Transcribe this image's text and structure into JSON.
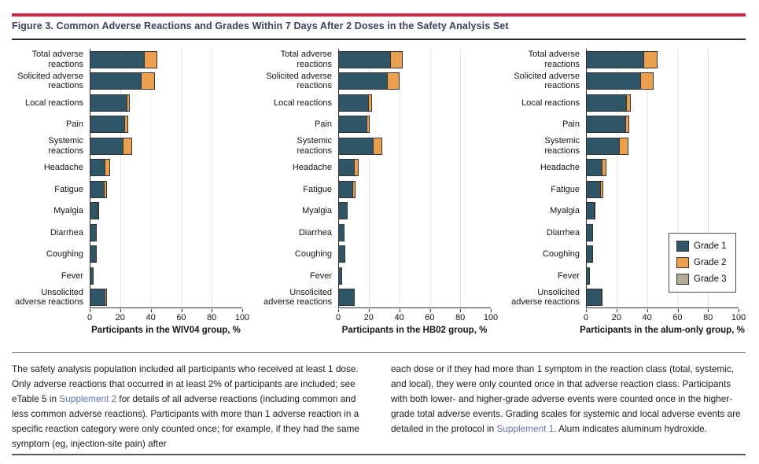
{
  "header": {
    "title": "Figure 3. Common Adverse Reactions and Grades Within 7 Days After 2 Doses in the Safety Analysis Set"
  },
  "colors": {
    "accent_red": "#d02440",
    "title_navy": "#3a4259",
    "grade1_teal": "#2f5666",
    "grade2_orange": "#eba04f",
    "grade3_gray": "#b5ab9b",
    "bar_border": "#333333",
    "gridline": "#e4e4e4",
    "link_blue": "#6373b5"
  },
  "legend": {
    "items": [
      {
        "label": "Grade 1",
        "color": "#2f5666"
      },
      {
        "label": "Grade 2",
        "color": "#eba04f"
      },
      {
        "label": "Grade 3",
        "color": "#b5ab9b"
      }
    ]
  },
  "chart_data": [
    {
      "type": "bar",
      "orientation": "horizontal",
      "stacked": true,
      "xlabel": "Participants in the WIV04 group, %",
      "xlim": [
        0,
        100
      ],
      "xticks": [
        0,
        20,
        40,
        60,
        80,
        100
      ],
      "grid": "vertical",
      "categories": [
        "Total adverse reactions",
        "Solicited adverse reactions",
        "Local reactions",
        "Pain",
        "Systemic reactions",
        "Headache",
        "Fatigue",
        "Myalgia",
        "Diarrhea",
        "Coughing",
        "Fever",
        "Unsolicited adverse reactions"
      ],
      "category_label_lines": [
        [
          "Total adverse",
          "reactions"
        ],
        [
          "Solicited adverse",
          "reactions"
        ],
        [
          "Local reactions"
        ],
        [
          "Pain"
        ],
        [
          "Systemic",
          "reactions"
        ],
        [
          "Headache"
        ],
        [
          "Fatigue"
        ],
        [
          "Myalgia"
        ],
        [
          "Diarrhea"
        ],
        [
          "Coughing"
        ],
        [
          "Fever"
        ],
        [
          "Unsolicited",
          "adverse reactions"
        ]
      ],
      "series": [
        {
          "name": "Grade 1",
          "color": "#2f5666",
          "values": [
            35,
            33,
            23.5,
            22,
            21,
            9.5,
            9,
            4.5,
            3.5,
            3.5,
            1.5,
            9.5
          ]
        },
        {
          "name": "Grade 2",
          "color": "#eba04f",
          "values": [
            8.5,
            8.5,
            2,
            2,
            6,
            3,
            1.5,
            0.5,
            0,
            0,
            0,
            1
          ]
        },
        {
          "name": "Grade 3",
          "color": "#b5ab9b",
          "values": [
            0,
            0,
            0,
            0,
            0,
            0,
            0,
            0,
            0,
            0,
            0,
            0
          ]
        }
      ]
    },
    {
      "type": "bar",
      "orientation": "horizontal",
      "stacked": true,
      "xlabel": "Participants in the HB02 group, %",
      "xlim": [
        0,
        100
      ],
      "xticks": [
        0,
        20,
        40,
        60,
        80,
        100
      ],
      "grid": "vertical",
      "categories": [
        "Total adverse reactions",
        "Solicited adverse reactions",
        "Local reactions",
        "Pain",
        "Systemic reactions",
        "Headache",
        "Fatigue",
        "Myalgia",
        "Diarrhea",
        "Coughing",
        "Fever",
        "Unsolicited adverse reactions"
      ],
      "category_label_lines": [
        [
          "Total adverse",
          "reactions"
        ],
        [
          "Solicited adverse",
          "reactions"
        ],
        [
          "Local reactions"
        ],
        [
          "Pain"
        ],
        [
          "Systemic",
          "reactions"
        ],
        [
          "Headache"
        ],
        [
          "Fatigue"
        ],
        [
          "Myalgia"
        ],
        [
          "Diarrhea"
        ],
        [
          "Coughing"
        ],
        [
          "Fever"
        ],
        [
          "Unsolicited",
          "adverse reactions"
        ]
      ],
      "series": [
        {
          "name": "Grade 1",
          "color": "#2f5666",
          "values": [
            33.5,
            31.5,
            19,
            18,
            22,
            10,
            9,
            5,
            3,
            3.5,
            1.5,
            10
          ]
        },
        {
          "name": "Grade 2",
          "color": "#eba04f",
          "values": [
            7.5,
            7.5,
            2,
            1.5,
            6,
            2.5,
            1.5,
            0,
            0,
            0,
            0,
            0
          ]
        },
        {
          "name": "Grade 3",
          "color": "#b5ab9b",
          "values": [
            0,
            0,
            0,
            0,
            0,
            0,
            0,
            0,
            0,
            0,
            0,
            0
          ]
        }
      ]
    },
    {
      "type": "bar",
      "orientation": "horizontal",
      "stacked": true,
      "xlabel": "Participants in the alum-only group, %",
      "xlim": [
        0,
        100
      ],
      "xticks": [
        0,
        20,
        40,
        60,
        80,
        100
      ],
      "grid": "vertical",
      "legend_position": "inside-right",
      "categories": [
        "Total adverse reactions",
        "Solicited adverse reactions",
        "Local reactions",
        "Pain",
        "Systemic reactions",
        "Headache",
        "Fatigue",
        "Myalgia",
        "Diarrhea",
        "Coughing",
        "Fever",
        "Unsolicited adverse reactions"
      ],
      "category_label_lines": [
        [
          "Total adverse",
          "reactions"
        ],
        [
          "Solicited adverse",
          "reactions"
        ],
        [
          "Local reactions"
        ],
        [
          "Pain"
        ],
        [
          "Systemic",
          "reactions"
        ],
        [
          "Headache"
        ],
        [
          "Fatigue"
        ],
        [
          "Myalgia"
        ],
        [
          "Diarrhea"
        ],
        [
          "Coughing"
        ],
        [
          "Fever"
        ],
        [
          "Unsolicited",
          "adverse reactions"
        ]
      ],
      "series": [
        {
          "name": "Grade 1",
          "color": "#2f5666",
          "values": [
            37,
            35,
            26,
            25,
            21,
            10,
            9,
            4.5,
            3.5,
            3.5,
            1.5,
            9.5
          ]
        },
        {
          "name": "Grade 2",
          "color": "#eba04f",
          "values": [
            9,
            8.5,
            2.5,
            2.5,
            6,
            2.5,
            1.5,
            0.5,
            0,
            0,
            0,
            0.5
          ]
        },
        {
          "name": "Grade 3",
          "color": "#b5ab9b",
          "values": [
            0,
            0,
            0,
            0,
            0,
            0,
            0,
            0,
            0,
            0,
            0,
            0
          ]
        }
      ]
    }
  ],
  "caption": {
    "left_segments": [
      {
        "text": "The safety analysis population included all participants who received at least 1 dose. Only adverse reactions that occurred in at least 2% of participants are included; see eTable 5 in ",
        "link": false
      },
      {
        "text": "Supplement 2",
        "link": true
      },
      {
        "text": " for details of all adverse reactions (including common and less common adverse reactions). Participants with more than 1 adverse reaction in a specific reaction category were only counted once; for example, if they had the same symptom (eg, injection-site pain) after",
        "link": false
      }
    ],
    "right_segments": [
      {
        "text": "each dose or if they had more than 1 symptom in the reaction class (total, systemic, and local), they were only counted once in that adverse reaction class. Participants with both lower- and higher-grade adverse events were counted once in the higher-grade total adverse events. Grading scales for systemic and local adverse events are detailed in the protocol in ",
        "link": false
      },
      {
        "text": "Supplement 1",
        "link": true
      },
      {
        "text": ". Alum indicates aluminum hydroxide.",
        "link": false
      }
    ]
  }
}
